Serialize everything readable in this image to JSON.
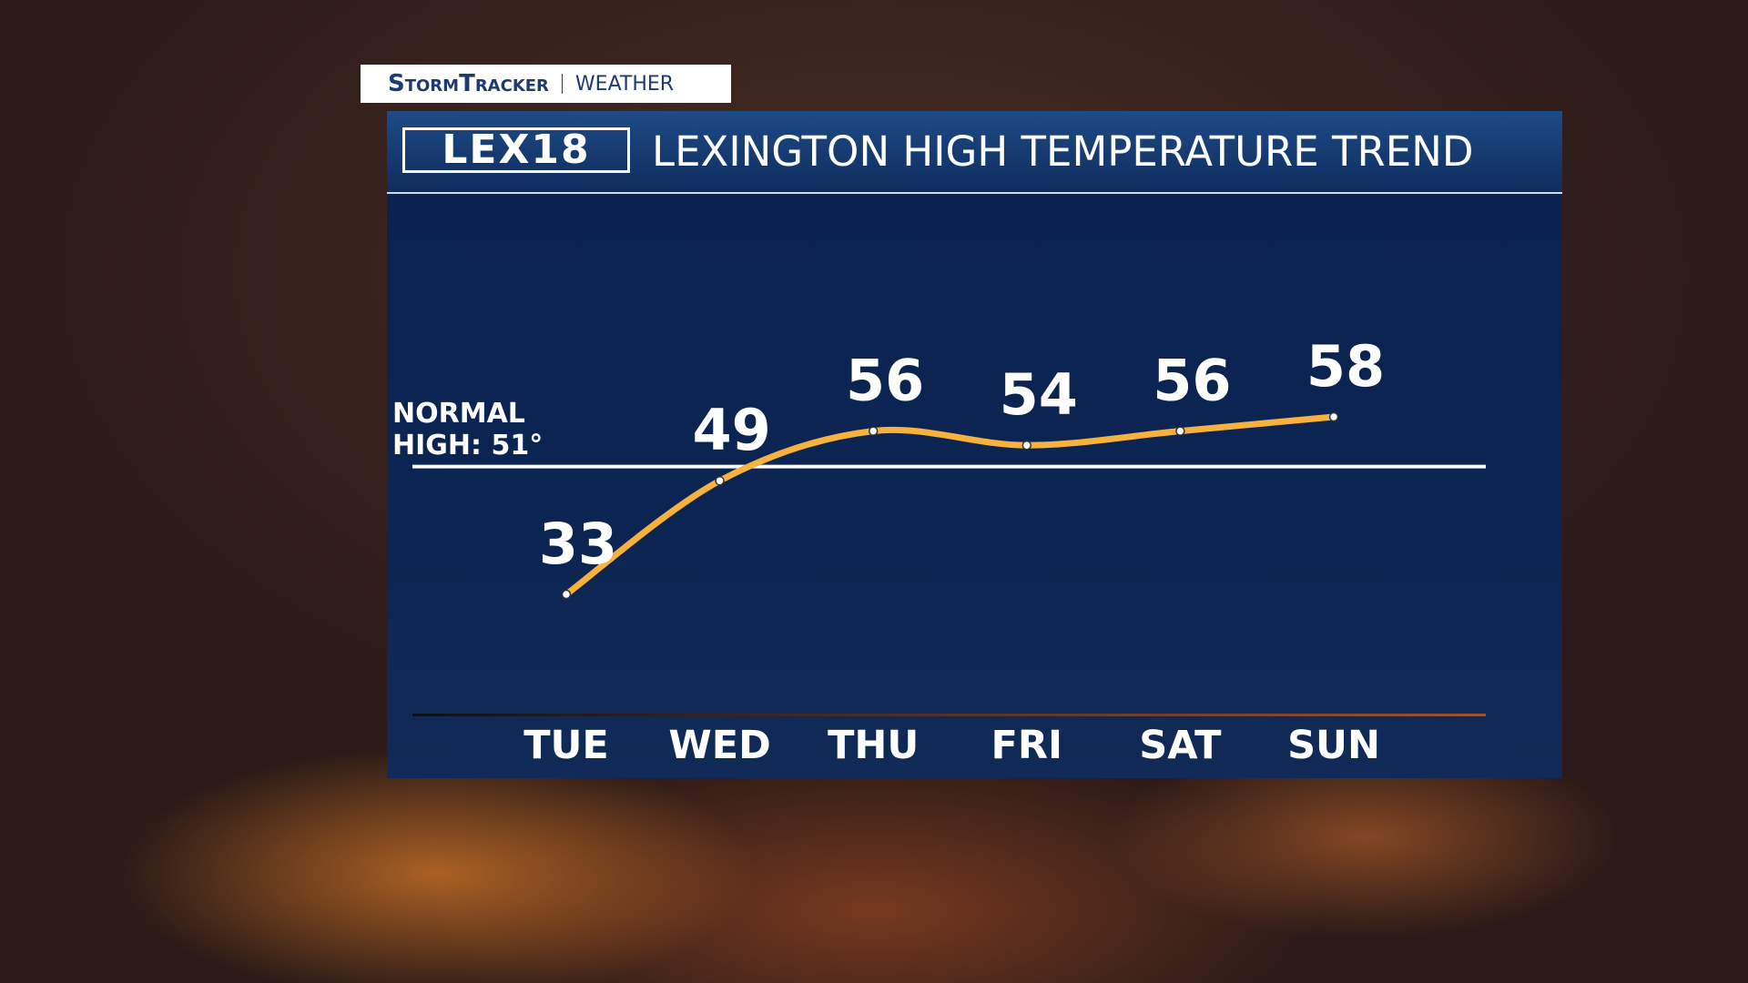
{
  "header": {
    "brand": "StormTracker",
    "section": "WEATHER",
    "logo": "LEX18"
  },
  "chart_data": {
    "type": "line",
    "title": "LEXINGTON HIGH TEMPERATURE TREND",
    "categories": [
      "TUE",
      "WED",
      "THU",
      "FRI",
      "SAT",
      "SUN"
    ],
    "series": [
      {
        "name": "High",
        "color": "#f7b13d",
        "values": [
          33,
          49,
          56,
          54,
          56,
          58
        ]
      }
    ],
    "reference_line": {
      "value": 51,
      "label": "NORMAL HIGH: 51°"
    }
  }
}
